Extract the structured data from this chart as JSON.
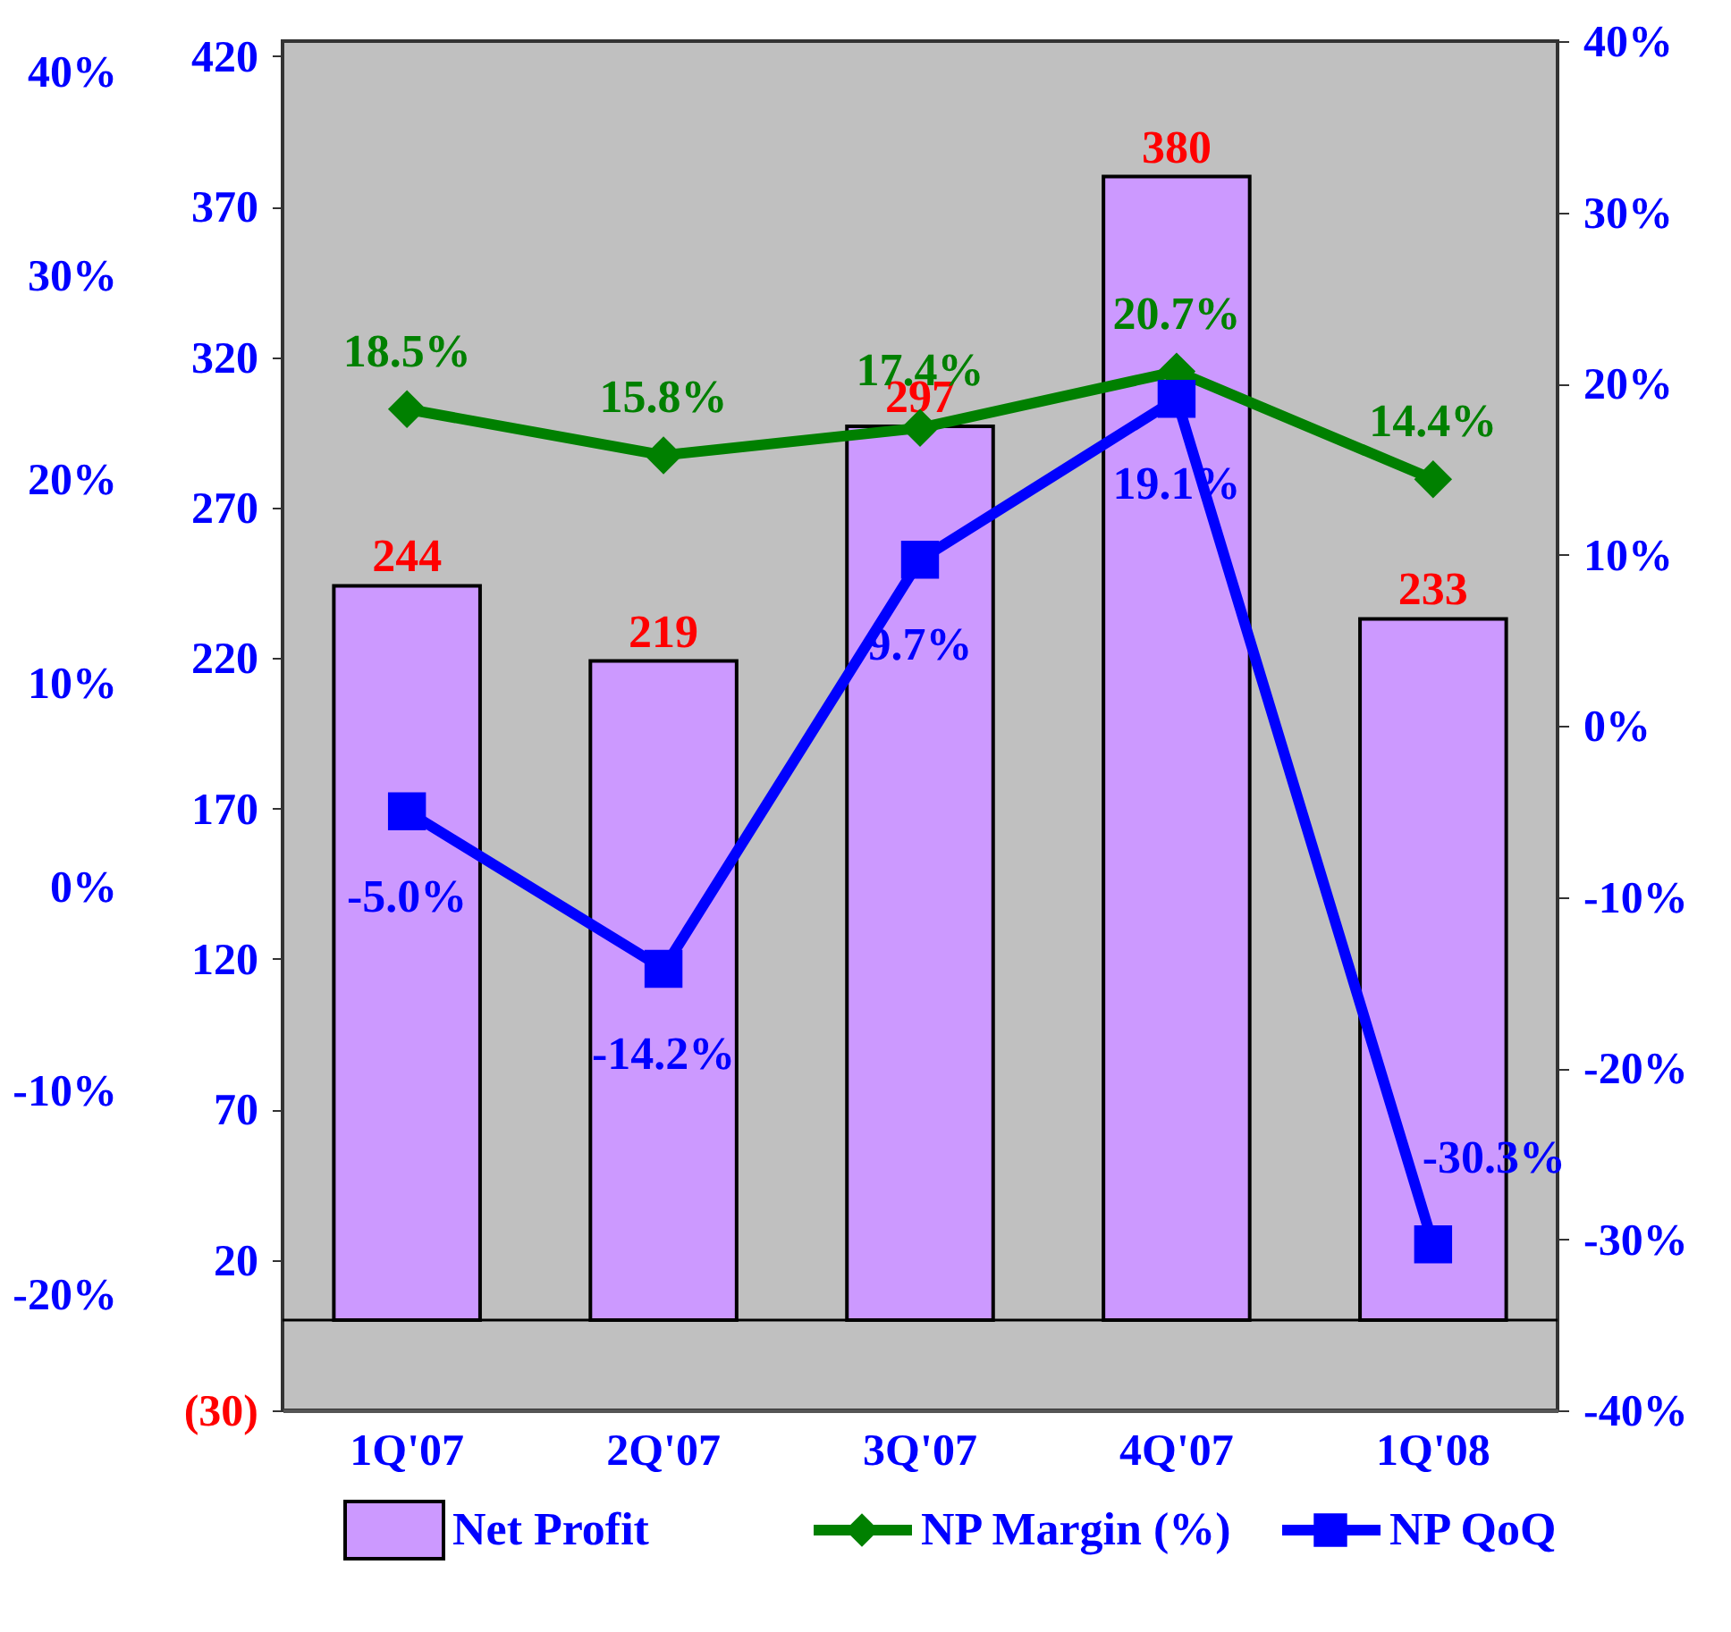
{
  "chart_data": {
    "type": "bar",
    "categories": [
      "1Q'07",
      "2Q'07",
      "3Q'07",
      "4Q'07",
      "1Q'08"
    ],
    "series": [
      {
        "name": "Net Profit",
        "color": "#cc99ff",
        "values": [
          244,
          219,
          297,
          380,
          233
        ],
        "value_labels": [
          "244",
          "219",
          "297",
          "380",
          "233"
        ]
      },
      {
        "name": "NP Margin (%)",
        "type": "line",
        "axis": "y2",
        "marker": "diamond",
        "color": "#008000",
        "values": [
          18.5,
          15.8,
          17.4,
          20.7,
          14.4
        ],
        "value_labels": [
          "18.5%",
          "15.8%",
          "17.4%",
          "20.7%",
          "14.4%"
        ]
      },
      {
        "name": "NP QoQ",
        "type": "line",
        "axis": "y2",
        "marker": "square",
        "color": "#0000ff",
        "values": [
          -5.0,
          -14.2,
          9.7,
          19.1,
          -30.3
        ],
        "value_labels": [
          "-5.0%",
          "-14.2%",
          "9.7%",
          "19.1%",
          "-30.3%"
        ]
      }
    ],
    "ylim": [
      -30,
      425
    ],
    "yticks": [
      {
        "value": -30,
        "label": "(30)"
      },
      20,
      70,
      120,
      170,
      220,
      270,
      320,
      370,
      420
    ],
    "y2lim": [
      -40,
      40
    ],
    "y2ticks": [
      {
        "value": -40,
        "label": "-40%"
      },
      {
        "value": -30,
        "label": "-30%"
      },
      {
        "value": -20,
        "label": "-20%"
      },
      {
        "value": -10,
        "label": "-10%"
      },
      {
        "value": 0,
        "label": "0%"
      },
      {
        "value": 10,
        "label": "10%"
      },
      {
        "value": 20,
        "label": "20%"
      },
      {
        "value": 30,
        "label": "30%"
      },
      {
        "value": 40,
        "label": "40%"
      }
    ],
    "y3lim": [
      -25.7,
      41.5
    ],
    "y3ticks": [
      {
        "value": -20,
        "label": "-20%"
      },
      {
        "value": -10,
        "label": "-10%"
      },
      {
        "value": 0,
        "label": "0%"
      },
      {
        "value": 10,
        "label": "10%"
      },
      {
        "value": 20,
        "label": "20%"
      },
      {
        "value": 30,
        "label": "30%"
      },
      {
        "value": 40,
        "label": "40%"
      }
    ],
    "line_style": "solid",
    "grid": false,
    "legend": "bottom"
  }
}
